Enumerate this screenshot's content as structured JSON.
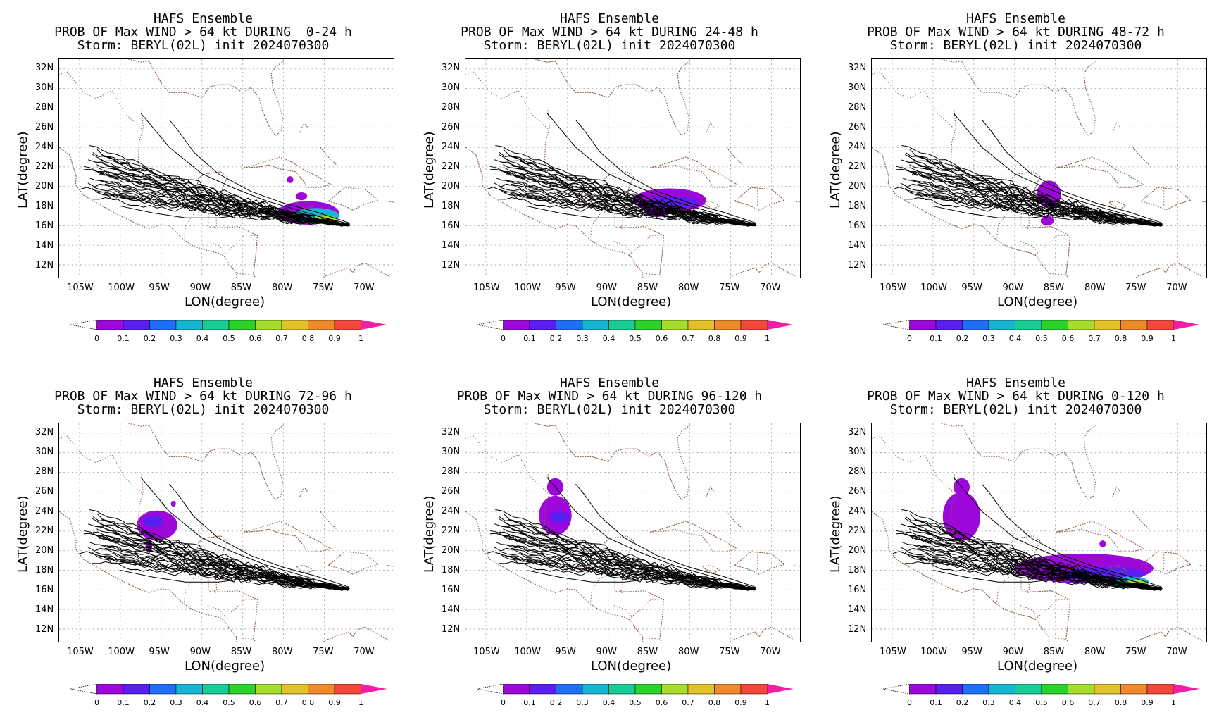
{
  "model": "HAFS Ensemble",
  "storm": "Storm: BERYL(02L) init 2024070300",
  "axis": {
    "xlabel": "LON(degree)",
    "ylabel": "LAT(degree)",
    "lon_ticks": [
      "105W",
      "100W",
      "95W",
      "90W",
      "85W",
      "80W",
      "75W",
      "70W"
    ],
    "lat_ticks": [
      "32N",
      "30N",
      "28N",
      "26N",
      "24N",
      "22N",
      "20N",
      "18N",
      "16N",
      "14N",
      "12N"
    ],
    "xlim": [
      -107.5,
      -66.5
    ],
    "ylim": [
      10.7,
      33.0
    ]
  },
  "colorbar": {
    "labels": [
      "0",
      "0.1",
      "0.2",
      "0.3",
      "0.4",
      "0.5",
      "0.6",
      "0.7",
      "0.8",
      "0.9",
      "1"
    ],
    "colors": [
      "#9b08d9",
      "#5a1ff0",
      "#1f6ef6",
      "#16b6d2",
      "#19cc95",
      "#2ad22a",
      "#a6dd2c",
      "#e2c22b",
      "#ef8a2a",
      "#f2473a"
    ],
    "under_color": "#ffffff",
    "over_color": "#f21fa6"
  },
  "panels": [
    {
      "title": "PROB OF Max WIND > 64 kt DURING  0-24 h",
      "window": "0-24"
    },
    {
      "title": "PROB OF Max WIND > 64 kt DURING 24-48 h",
      "window": "24-48"
    },
    {
      "title": "PROB OF Max WIND > 64 kt DURING 48-72 h",
      "window": "48-72"
    },
    {
      "title": "PROB OF Max WIND > 64 kt DURING 72-96 h",
      "window": "72-96"
    },
    {
      "title": "PROB OF Max WIND > 64 kt DURING 96-120 h",
      "window": "96-120"
    },
    {
      "title": "PROB OF Max WIND > 64 kt DURING 0-120 h",
      "window": "0-120"
    }
  ],
  "probability_regions": {
    "0-24": [
      {
        "lon": -77.0,
        "lat": 17.3,
        "rlon": 3.8,
        "rlat": 1.2,
        "p": 0.05
      },
      {
        "lon": -76.0,
        "lat": 17.0,
        "rlon": 2.8,
        "rlat": 0.8,
        "p": 0.35
      },
      {
        "lon": -75.0,
        "lat": 16.6,
        "rlon": 1.6,
        "rlat": 0.45,
        "p": 0.65
      },
      {
        "lon": -79.2,
        "lat": 20.7,
        "rlon": 0.4,
        "rlat": 0.35,
        "p": 0.05
      },
      {
        "lon": -77.8,
        "lat": 19.0,
        "rlon": 0.7,
        "rlat": 0.4,
        "p": 0.05
      }
    ],
    "24-48": [
      {
        "lon": -82.5,
        "lat": 18.6,
        "rlon": 4.5,
        "rlat": 1.2,
        "p": 0.05
      },
      {
        "lon": -82.0,
        "lat": 18.4,
        "rlon": 3.0,
        "rlat": 0.6,
        "p": 0.15
      },
      {
        "lon": -84.0,
        "lat": 17.3,
        "rlon": 1.5,
        "rlat": 0.4,
        "p": 0.05
      }
    ],
    "48-72": [
      {
        "lon": -85.8,
        "lat": 19.2,
        "rlon": 1.5,
        "rlat": 1.4,
        "p": 0.05
      },
      {
        "lon": -86.0,
        "lat": 16.5,
        "rlon": 0.8,
        "rlat": 0.5,
        "p": 0.05
      }
    ],
    "72-96": [
      {
        "lon": -95.5,
        "lat": 22.6,
        "rlon": 2.5,
        "rlat": 1.5,
        "p": 0.05
      },
      {
        "lon": -96.5,
        "lat": 20.5,
        "rlon": 0.4,
        "rlat": 0.7,
        "p": 0.05
      },
      {
        "lon": -93.5,
        "lat": 24.8,
        "rlon": 0.3,
        "rlat": 0.3,
        "p": 0.05
      },
      {
        "lon": -96.0,
        "lat": 23.0,
        "rlon": 1.2,
        "rlat": 0.6,
        "p": 0.15
      }
    ],
    "96-120": [
      {
        "lon": -96.5,
        "lat": 23.6,
        "rlon": 2.0,
        "rlat": 2.0,
        "p": 0.05
      },
      {
        "lon": -96.5,
        "lat": 26.5,
        "rlon": 1.0,
        "rlat": 0.9,
        "p": 0.05
      },
      {
        "lon": -96.0,
        "lat": 23.4,
        "rlon": 1.2,
        "rlat": 0.6,
        "p": 0.15
      }
    ],
    "0-120": [
      {
        "lon": -96.5,
        "lat": 23.5,
        "rlon": 2.3,
        "rlat": 2.5,
        "p": 0.05
      },
      {
        "lon": -96.5,
        "lat": 26.5,
        "rlon": 1.0,
        "rlat": 0.9,
        "p": 0.05
      },
      {
        "lon": -81.5,
        "lat": 18.2,
        "rlon": 8.5,
        "rlat": 1.5,
        "p": 0.05
      },
      {
        "lon": -79.0,
        "lat": 17.6,
        "rlon": 5.0,
        "rlat": 0.7,
        "p": 0.15
      },
      {
        "lon": -76.0,
        "lat": 16.8,
        "rlon": 2.5,
        "rlat": 0.55,
        "p": 0.35
      },
      {
        "lon": -75.0,
        "lat": 16.7,
        "rlon": 1.3,
        "rlat": 0.35,
        "p": 0.65
      },
      {
        "lon": -79.2,
        "lat": 20.7,
        "rlon": 0.4,
        "rlat": 0.35,
        "p": 0.05
      }
    ]
  }
}
